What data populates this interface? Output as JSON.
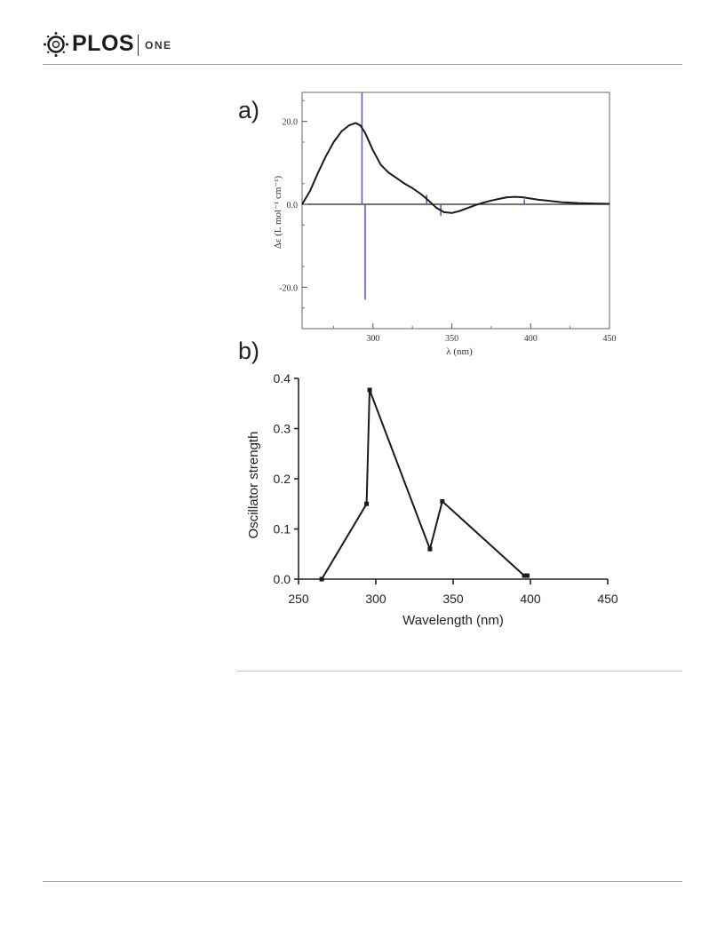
{
  "header": {
    "logo_text": "PLOS",
    "logo_sub": "ONE"
  },
  "colors": {
    "curve": "#1a1a1a",
    "sticks": "#5a5fc0",
    "axis": "#333333"
  },
  "chart_data": [
    {
      "panel_label": "a)",
      "type": "line",
      "xlabel": "λ (nm)",
      "ylabel": "Δε (L mol⁻¹ cm⁻¹)",
      "xlim": [
        255,
        450
      ],
      "ylim": [
        -30,
        27
      ],
      "x_ticks": [
        "300",
        "350",
        "400",
        "450"
      ],
      "y_ticks": [
        "20.0",
        "0.0",
        "-20.0"
      ],
      "grid": false,
      "series": [
        {
          "style": "curve",
          "x": [
            255,
            260,
            265,
            270,
            275,
            280,
            285,
            289,
            292,
            295,
            300,
            305,
            310,
            315,
            320,
            325,
            330,
            335,
            340,
            345,
            350,
            355,
            360,
            365,
            370,
            375,
            380,
            385,
            390,
            395,
            400,
            405,
            410,
            420,
            430,
            440,
            450
          ],
          "y": [
            0,
            3.2,
            7.5,
            11.5,
            15,
            17.6,
            19.1,
            19.6,
            19,
            17.2,
            13,
            9.5,
            7.6,
            6.3,
            5,
            3.9,
            2.6,
            1,
            -0.8,
            -1.9,
            -2.1,
            -1.6,
            -0.9,
            -0.2,
            0.4,
            0.9,
            1.3,
            1.7,
            1.8,
            1.7,
            1.4,
            1.1,
            0.9,
            0.5,
            0.3,
            0.2,
            0.1
          ]
        },
        {
          "style": "sticks",
          "x": [
            293,
            295,
            334,
            343,
            396
          ],
          "y": [
            27,
            -23,
            2.3,
            -2.8,
            1.2
          ]
        }
      ]
    },
    {
      "panel_label": "b)",
      "type": "line",
      "xlabel": "Wavelength (nm)",
      "ylabel": "Oscillator strength",
      "xlim": [
        250,
        450
      ],
      "ylim": [
        0,
        0.4
      ],
      "x_ticks": [
        "250",
        "300",
        "350",
        "400",
        "450"
      ],
      "y_ticks": [
        "0.0",
        "0.1",
        "0.2",
        "0.3",
        "0.4"
      ],
      "grid": false,
      "series": [
        {
          "x": [
            265,
            294,
            296,
            335,
            343,
            396,
            398
          ],
          "y": [
            0.0,
            0.15,
            0.377,
            0.06,
            0.155,
            0.007,
            0.007
          ]
        }
      ]
    }
  ]
}
